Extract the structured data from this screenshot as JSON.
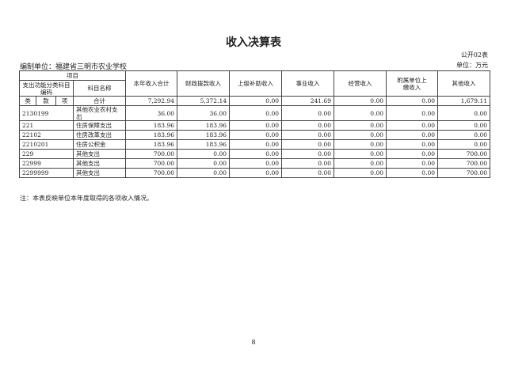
{
  "title": "收入决算表",
  "form_no": "公开02表",
  "org": "编制单位：福建省三明市农业学校",
  "unit": "单位：万元",
  "header": {
    "item": "项目",
    "func_code": "支出功能分类科目编码",
    "subject_name": "科目名称",
    "total": "本年收入合计",
    "fiscal": "财政拨款收入",
    "superior": "上级补助收入",
    "business": "事业收入",
    "operating": "经营收入",
    "affiliated": "附属单位上缴收入",
    "other": "其他收入",
    "lei": "类",
    "kuan": "款",
    "xiang": "项"
  },
  "total_row": {
    "label": "合计",
    "values": [
      "7,292.94",
      "5,372.14",
      "0.00",
      "241.69",
      "0.00",
      "0.00",
      "1,679.11"
    ]
  },
  "rows": [
    {
      "code": "2130199",
      "name": "其他农业农村支出",
      "values": [
        "36.00",
        "36.00",
        "0.00",
        "0.00",
        "0.00",
        "0.00",
        "0.00"
      ]
    },
    {
      "code": "221",
      "name": "住房保障支出",
      "values": [
        "183.96",
        "183.96",
        "0.00",
        "0.00",
        "0.00",
        "0.00",
        "0.00"
      ]
    },
    {
      "code": "22102",
      "name": "住房改革支出",
      "values": [
        "183.96",
        "183.96",
        "0.00",
        "0.00",
        "0.00",
        "0.00",
        "0.00"
      ]
    },
    {
      "code": "2210201",
      "name": "住房公积金",
      "values": [
        "183.96",
        "183.96",
        "0.00",
        "0.00",
        "0.00",
        "0.00",
        "0.00"
      ]
    },
    {
      "code": "229",
      "name": "其他支出",
      "values": [
        "700.00",
        "0.00",
        "0.00",
        "0.00",
        "0.00",
        "0.00",
        "700.00"
      ]
    },
    {
      "code": "22999",
      "name": "其他支出",
      "values": [
        "700.00",
        "0.00",
        "0.00",
        "0.00",
        "0.00",
        "0.00",
        "700.00"
      ]
    },
    {
      "code": "2299999",
      "name": "其他支出",
      "values": [
        "700.00",
        "0.00",
        "0.00",
        "0.00",
        "0.00",
        "0.00",
        "700.00"
      ]
    }
  ],
  "note": "注：本表反映单位本年度取得的各项收入情况。",
  "page_number": "8"
}
